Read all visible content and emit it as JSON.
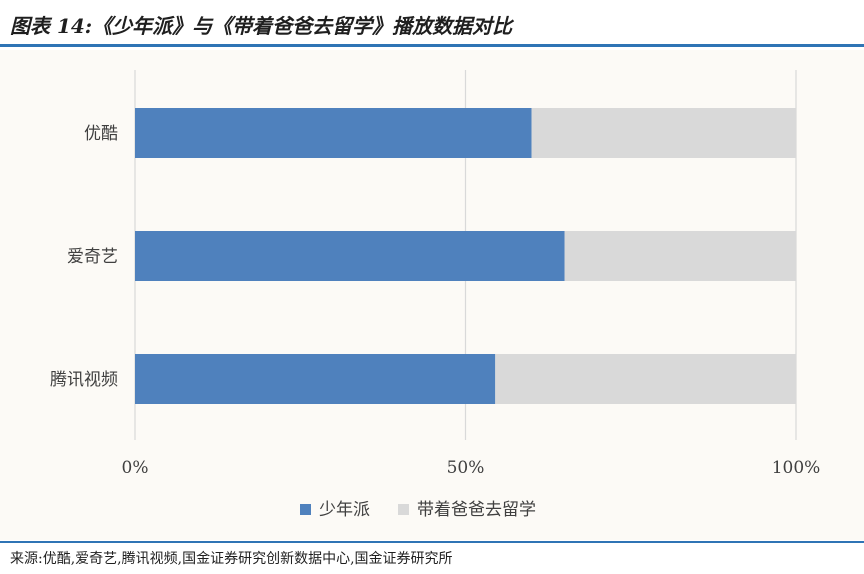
{
  "title": "图表 14:《少年派》与《带着爸爸去留学》播放数据对比",
  "source": "来源:优酷,爱奇艺,腾讯视频,国金证券研究创新数据中心,国金证券研究所",
  "chart_data": {
    "type": "bar",
    "orientation": "horizontal",
    "stacked": "percent",
    "categories": [
      "优酷",
      "爱奇艺",
      "腾讯视频"
    ],
    "series": [
      {
        "name": "少年派",
        "values": [
          60,
          65,
          54.5
        ],
        "color": "#4f81bd"
      },
      {
        "name": "带着爸爸去留学",
        "values": [
          40,
          35,
          45.5
        ],
        "color": "#d9d9d9"
      }
    ],
    "x_ticks": [
      "0%",
      "50%",
      "100%"
    ],
    "xlim": [
      0,
      100
    ],
    "grid": true,
    "legend_position": "bottom"
  }
}
